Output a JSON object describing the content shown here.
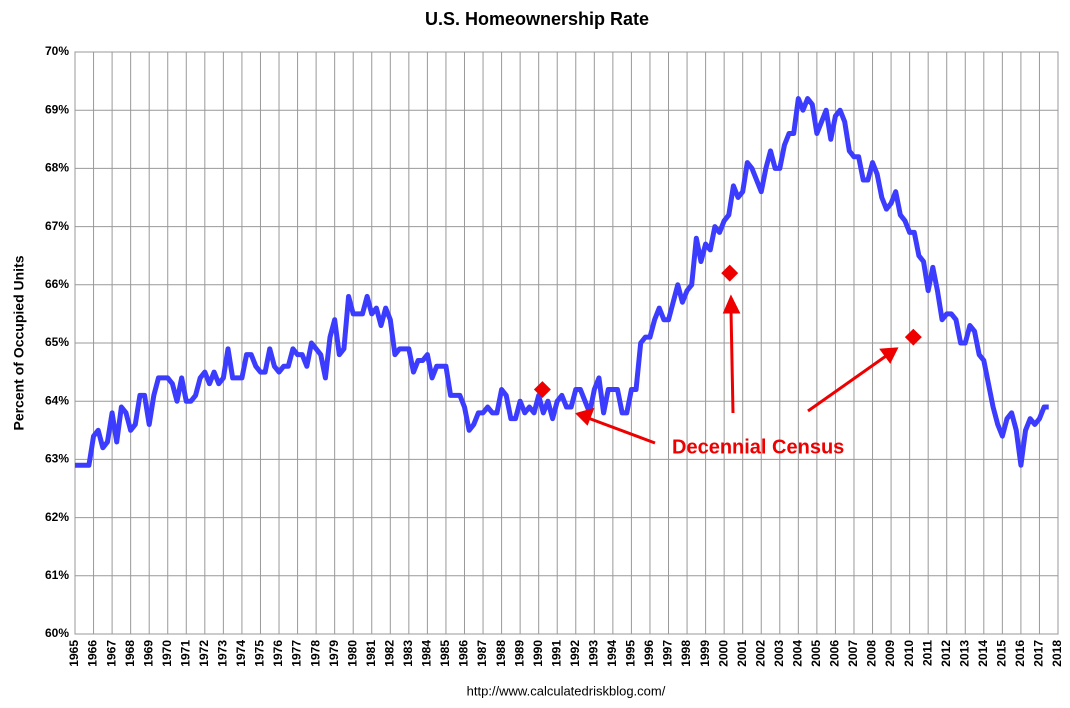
{
  "chart_data": {
    "type": "line",
    "title": "U.S. Homeownership Rate",
    "y_label": "Percent of Occupied Units",
    "source": "http://www.calculatedriskblog.com/",
    "annotation": "Decennial Census",
    "xlim": [
      1965,
      2018
    ],
    "xticks": [
      1965,
      1966,
      1967,
      1968,
      1969,
      1970,
      1971,
      1972,
      1973,
      1974,
      1975,
      1976,
      1977,
      1978,
      1979,
      1980,
      1981,
      1982,
      1983,
      1984,
      1985,
      1986,
      1987,
      1988,
      1989,
      1990,
      1991,
      1992,
      1993,
      1994,
      1995,
      1996,
      1997,
      1998,
      1999,
      2000,
      2001,
      2002,
      2003,
      2004,
      2005,
      2006,
      2007,
      2008,
      2009,
      2010,
      2011,
      2012,
      2013,
      2014,
      2015,
      2016,
      2017,
      2018
    ],
    "ylim": [
      60,
      70
    ],
    "yticks": [
      {
        "value": 60,
        "label": "60%"
      },
      {
        "value": 61,
        "label": "61%"
      },
      {
        "value": 62,
        "label": "62%"
      },
      {
        "value": 63,
        "label": "63%"
      },
      {
        "value": 64,
        "label": "64%"
      },
      {
        "value": 65,
        "label": "65%"
      },
      {
        "value": 66,
        "label": "66%"
      },
      {
        "value": 67,
        "label": "67%"
      },
      {
        "value": 68,
        "label": "68%"
      },
      {
        "value": 69,
        "label": "69%"
      },
      {
        "value": 70,
        "label": "70%"
      }
    ],
    "grid": true,
    "x": [
      1965,
      1965.75,
      1966,
      1966.25,
      1966.5,
      1966.75,
      1967,
      1967.25,
      1967.5,
      1967.75,
      1968,
      1968.25,
      1968.5,
      1968.75,
      1969,
      1969.25,
      1969.5,
      1969.75,
      1970,
      1970.25,
      1970.5,
      1970.75,
      1971,
      1971.25,
      1971.5,
      1971.75,
      1972,
      1972.25,
      1972.5,
      1972.75,
      1973,
      1973.25,
      1973.5,
      1973.75,
      1974,
      1974.25,
      1974.5,
      1974.75,
      1975,
      1975.25,
      1975.5,
      1975.75,
      1976,
      1976.25,
      1976.5,
      1976.75,
      1977,
      1977.25,
      1977.5,
      1977.75,
      1978,
      1978.25,
      1978.5,
      1978.75,
      1979,
      1979.25,
      1979.5,
      1979.75,
      1980,
      1980.25,
      1980.5,
      1980.75,
      1981,
      1981.25,
      1981.5,
      1981.75,
      1982,
      1982.25,
      1982.5,
      1982.75,
      1983,
      1983.25,
      1983.5,
      1983.75,
      1984,
      1984.25,
      1984.5,
      1984.75,
      1985,
      1985.25,
      1985.5,
      1985.75,
      1986,
      1986.25,
      1986.5,
      1986.75,
      1987,
      1987.25,
      1987.5,
      1987.75,
      1988,
      1988.25,
      1988.5,
      1988.75,
      1989,
      1989.25,
      1989.5,
      1989.75,
      1990,
      1990.25,
      1990.5,
      1990.75,
      1991,
      1991.25,
      1991.5,
      1991.75,
      1992,
      1992.25,
      1992.5,
      1992.75,
      1993,
      1993.25,
      1993.5,
      1993.75,
      1994,
      1994.25,
      1994.5,
      1994.75,
      1995,
      1995.25,
      1995.5,
      1995.75,
      1996,
      1996.25,
      1996.5,
      1996.75,
      1997,
      1997.25,
      1997.5,
      1997.75,
      1998,
      1998.25,
      1998.5,
      1998.75,
      1999,
      1999.25,
      1999.5,
      1999.75,
      2000,
      2000.25,
      2000.5,
      2000.75,
      2001,
      2001.25,
      2001.5,
      2001.75,
      2002,
      2002.25,
      2002.5,
      2002.75,
      2003,
      2003.25,
      2003.5,
      2003.75,
      2004,
      2004.25,
      2004.5,
      2004.75,
      2005,
      2005.25,
      2005.5,
      2005.75,
      2006,
      2006.25,
      2006.5,
      2006.75,
      2007,
      2007.25,
      2007.5,
      2007.75,
      2008,
      2008.25,
      2008.5,
      2008.75,
      2009,
      2009.25,
      2009.5,
      2009.75,
      2010,
      2010.25,
      2010.5,
      2010.75,
      2011,
      2011.25,
      2011.5,
      2011.75,
      2012,
      2012.25,
      2012.5,
      2012.75,
      2013,
      2013.25,
      2013.5,
      2013.75,
      2014,
      2014.25,
      2014.5,
      2014.75,
      2015,
      2015.25,
      2015.5,
      2015.75,
      2016,
      2016.25,
      2016.5,
      2016.75,
      2017,
      2017.25,
      2017.5
    ],
    "series": [
      {
        "color": "#3c3cff",
        "values": [
          62.9,
          62.9,
          63.4,
          63.5,
          63.2,
          63.3,
          63.8,
          63.3,
          63.9,
          63.8,
          63.5,
          63.6,
          64.1,
          64.1,
          63.6,
          64.1,
          64.4,
          64.4,
          64.4,
          64.3,
          64.0,
          64.4,
          64.0,
          64.0,
          64.1,
          64.4,
          64.5,
          64.3,
          64.5,
          64.3,
          64.4,
          64.9,
          64.4,
          64.4,
          64.4,
          64.8,
          64.8,
          64.6,
          64.5,
          64.5,
          64.9,
          64.6,
          64.5,
          64.6,
          64.6,
          64.9,
          64.8,
          64.8,
          64.6,
          65.0,
          64.9,
          64.8,
          64.4,
          65.1,
          65.4,
          64.8,
          64.9,
          65.8,
          65.5,
          65.5,
          65.5,
          65.8,
          65.5,
          65.6,
          65.3,
          65.6,
          65.4,
          64.8,
          64.9,
          64.9,
          64.9,
          64.5,
          64.7,
          64.7,
          64.8,
          64.4,
          64.6,
          64.6,
          64.6,
          64.1,
          64.1,
          64.1,
          63.9,
          63.5,
          63.6,
          63.8,
          63.8,
          63.9,
          63.8,
          63.8,
          64.2,
          64.1,
          63.7,
          63.7,
          64.0,
          63.8,
          63.9,
          63.8,
          64.1,
          63.8,
          64.0,
          63.7,
          64.0,
          64.1,
          63.9,
          63.9,
          64.2,
          64.2,
          64.0,
          63.8,
          64.2,
          64.4,
          63.8,
          64.2,
          64.2,
          64.2,
          63.8,
          63.8,
          64.2,
          64.2,
          65.0,
          65.1,
          65.1,
          65.4,
          65.6,
          65.4,
          65.4,
          65.7,
          66.0,
          65.7,
          65.9,
          66.0,
          66.8,
          66.4,
          66.7,
          66.6,
          67.0,
          66.9,
          67.1,
          67.2,
          67.7,
          67.5,
          67.6,
          68.1,
          68.0,
          67.8,
          67.6,
          68.0,
          68.3,
          68.0,
          68.0,
          68.4,
          68.6,
          68.6,
          69.2,
          69.0,
          69.2,
          69.1,
          68.6,
          68.8,
          69.0,
          68.5,
          68.9,
          69.0,
          68.8,
          68.3,
          68.2,
          68.2,
          67.8,
          67.8,
          68.1,
          67.9,
          67.5,
          67.3,
          67.4,
          67.6,
          67.2,
          67.1,
          66.9,
          66.9,
          66.5,
          66.4,
          65.9,
          66.3,
          65.9,
          65.4,
          65.5,
          65.5,
          65.4,
          65.0,
          65.0,
          65.3,
          65.2,
          64.8,
          64.7,
          64.3,
          63.9,
          63.6,
          63.4,
          63.7,
          63.8,
          63.5,
          62.9,
          63.5,
          63.7,
          63.6,
          63.7,
          63.9,
          63.9
        ]
      }
    ],
    "census": {
      "color": "#ee0000",
      "x": [
        1990.2,
        2000.3,
        2010.2
      ],
      "values": [
        64.2,
        66.2,
        65.1
      ]
    }
  }
}
